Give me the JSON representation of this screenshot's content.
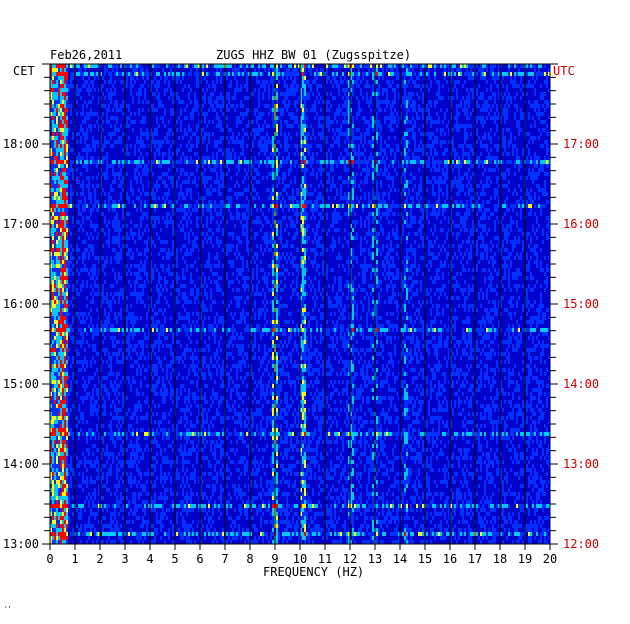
{
  "chart_data": {
    "type": "heatmap",
    "date": "Feb26,2011",
    "title": "ZUGS HHZ BW 01 (Zugsspitze)",
    "left_axis_label": "CET",
    "right_axis_label": "UTC",
    "xlabel": "FREQUENCY (HZ)",
    "xlim": [
      0,
      20
    ],
    "x_ticks": [
      "0",
      "1",
      "2",
      "3",
      "4",
      "5",
      "6",
      "7",
      "8",
      "9",
      "10",
      "11",
      "12",
      "13",
      "14",
      "15",
      "16",
      "17",
      "18",
      "19",
      "20"
    ],
    "cet_ticks": [
      "13:00",
      "14:00",
      "15:00",
      "16:00",
      "17:00",
      "18:00"
    ],
    "utc_ticks": [
      "12:00",
      "13:00",
      "14:00",
      "15:00",
      "16:00",
      "17:00"
    ],
    "time_range_cet": [
      "13:00",
      "19:00"
    ],
    "grid": true,
    "dominant_frequencies_hz": [
      0.5,
      9.0,
      10.1,
      12.0,
      13.0,
      14.2
    ],
    "colors": {
      "background": "#0000c8",
      "low": "#0030ff",
      "mid": "#00c8ff",
      "high": "#ffff00",
      "peak": "#ff0000",
      "utc_label": "#cc0000",
      "grid": "#000000"
    }
  },
  "footer": {
    "mark": "‘’"
  }
}
